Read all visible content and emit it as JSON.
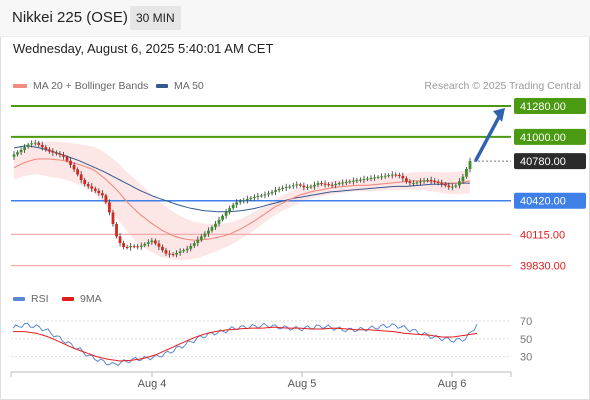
{
  "header": {
    "title": "Nikkei 225 (OSE)",
    "interval": "30 MIN",
    "datetime": "Wednesday, August 6, 2025 5:40:01 AM CET"
  },
  "legend": {
    "main": [
      {
        "label": "MA 20 + Bollinger Bands",
        "color": "#f28b82"
      },
      {
        "label": "MA 50",
        "color": "#35588f"
      }
    ],
    "rsi": [
      {
        "label": "RSI",
        "color": "#5b87d6"
      },
      {
        "label": "9MA",
        "color": "#e31b1b"
      }
    ],
    "copyright": "Research © 2025 Trading Central"
  },
  "chart_data": [
    {
      "type": "candlestick",
      "ylim": [
        39700,
        41380
      ],
      "x_ticks": [
        "Aug 4",
        "Aug 5",
        "Aug 6"
      ],
      "levels": [
        {
          "value": 41280,
          "label": "41280.00",
          "kind": "resistance"
        },
        {
          "value": 41000,
          "label": "41000.00",
          "kind": "resistance"
        },
        {
          "value": 40780,
          "label": "40780.00",
          "kind": "current"
        },
        {
          "value": 40420,
          "label": "40420.00",
          "kind": "pivot"
        },
        {
          "value": 40115,
          "label": "40115.00",
          "kind": "support"
        },
        {
          "value": 39830,
          "label": "39830.00",
          "kind": "support"
        }
      ],
      "close_waypoints": [
        40840,
        40880,
        40930,
        40950,
        40910,
        40870,
        40850,
        40830,
        40760,
        40680,
        40580,
        40540,
        40500,
        40460,
        40280,
        40060,
        39990,
        40010,
        40000,
        40030,
        40060,
        40000,
        39940,
        39930,
        39960,
        39980,
        40030,
        40090,
        40140,
        40200,
        40270,
        40340,
        40400,
        40420,
        40440,
        40460,
        40470,
        40490,
        40520,
        40540,
        40550,
        40570,
        40540,
        40550,
        40580,
        40570,
        40560,
        40580,
        40590,
        40600,
        40610,
        40620,
        40630,
        40640,
        40650,
        40660,
        40640,
        40580,
        40580,
        40600,
        40610,
        40590,
        40570,
        40540,
        40560,
        40640,
        40780
      ],
      "ma20_waypoints": [
        40720,
        40770,
        40800,
        40800,
        40790,
        40770,
        40740,
        40700,
        40620,
        40520,
        40400,
        40300,
        40220,
        40150,
        40100,
        40070,
        40060,
        40070,
        40090,
        40120,
        40170,
        40230,
        40300,
        40370,
        40420,
        40470,
        40500,
        40520,
        40540,
        40550,
        40560,
        40560,
        40570,
        40580,
        40590,
        40600,
        40600,
        40590,
        40580,
        40580,
        40600
      ],
      "ma50_waypoints": [
        40900,
        40920,
        40900,
        40870,
        40830,
        40790,
        40740,
        40690,
        40630,
        40570,
        40510,
        40460,
        40420,
        40380,
        40350,
        40330,
        40320,
        40320,
        40330,
        40350,
        40380,
        40410,
        40440,
        40460,
        40480,
        40500,
        40510,
        40520,
        40530,
        40540,
        40550,
        40550,
        40560,
        40570,
        40570,
        40580,
        40580
      ],
      "bb_width_waypoints": [
        110,
        130,
        160,
        170,
        190,
        230,
        260,
        280,
        260,
        220,
        180,
        140,
        110,
        90,
        80,
        70,
        70,
        60,
        60,
        55,
        55,
        60,
        70,
        80,
        90,
        100,
        110
      ],
      "projection": {
        "from": 40780,
        "to": 41280
      }
    },
    {
      "type": "line",
      "name": "RSI",
      "ylim": [
        15,
        80
      ],
      "y_ticks": [
        70,
        50,
        30
      ],
      "rsi_waypoints": [
        62,
        66,
        64,
        60,
        52,
        45,
        38,
        30,
        25,
        21,
        24,
        27,
        28,
        30,
        34,
        40,
        46,
        52,
        56,
        58,
        62,
        63,
        64,
        65,
        63,
        62,
        61,
        63,
        64,
        62,
        60,
        60,
        61,
        63,
        65,
        64,
        60,
        56,
        52,
        50,
        48,
        50,
        66
      ],
      "ma_waypoints": [
        58,
        58,
        56,
        52,
        46,
        40,
        35,
        30,
        27,
        25,
        26,
        28,
        32,
        38,
        44,
        50,
        55,
        58,
        60,
        61,
        62,
        62,
        63,
        62,
        62,
        61,
        61,
        62,
        61,
        60,
        60,
        59,
        58,
        56,
        55,
        54,
        52,
        52,
        54,
        56
      ]
    }
  ]
}
